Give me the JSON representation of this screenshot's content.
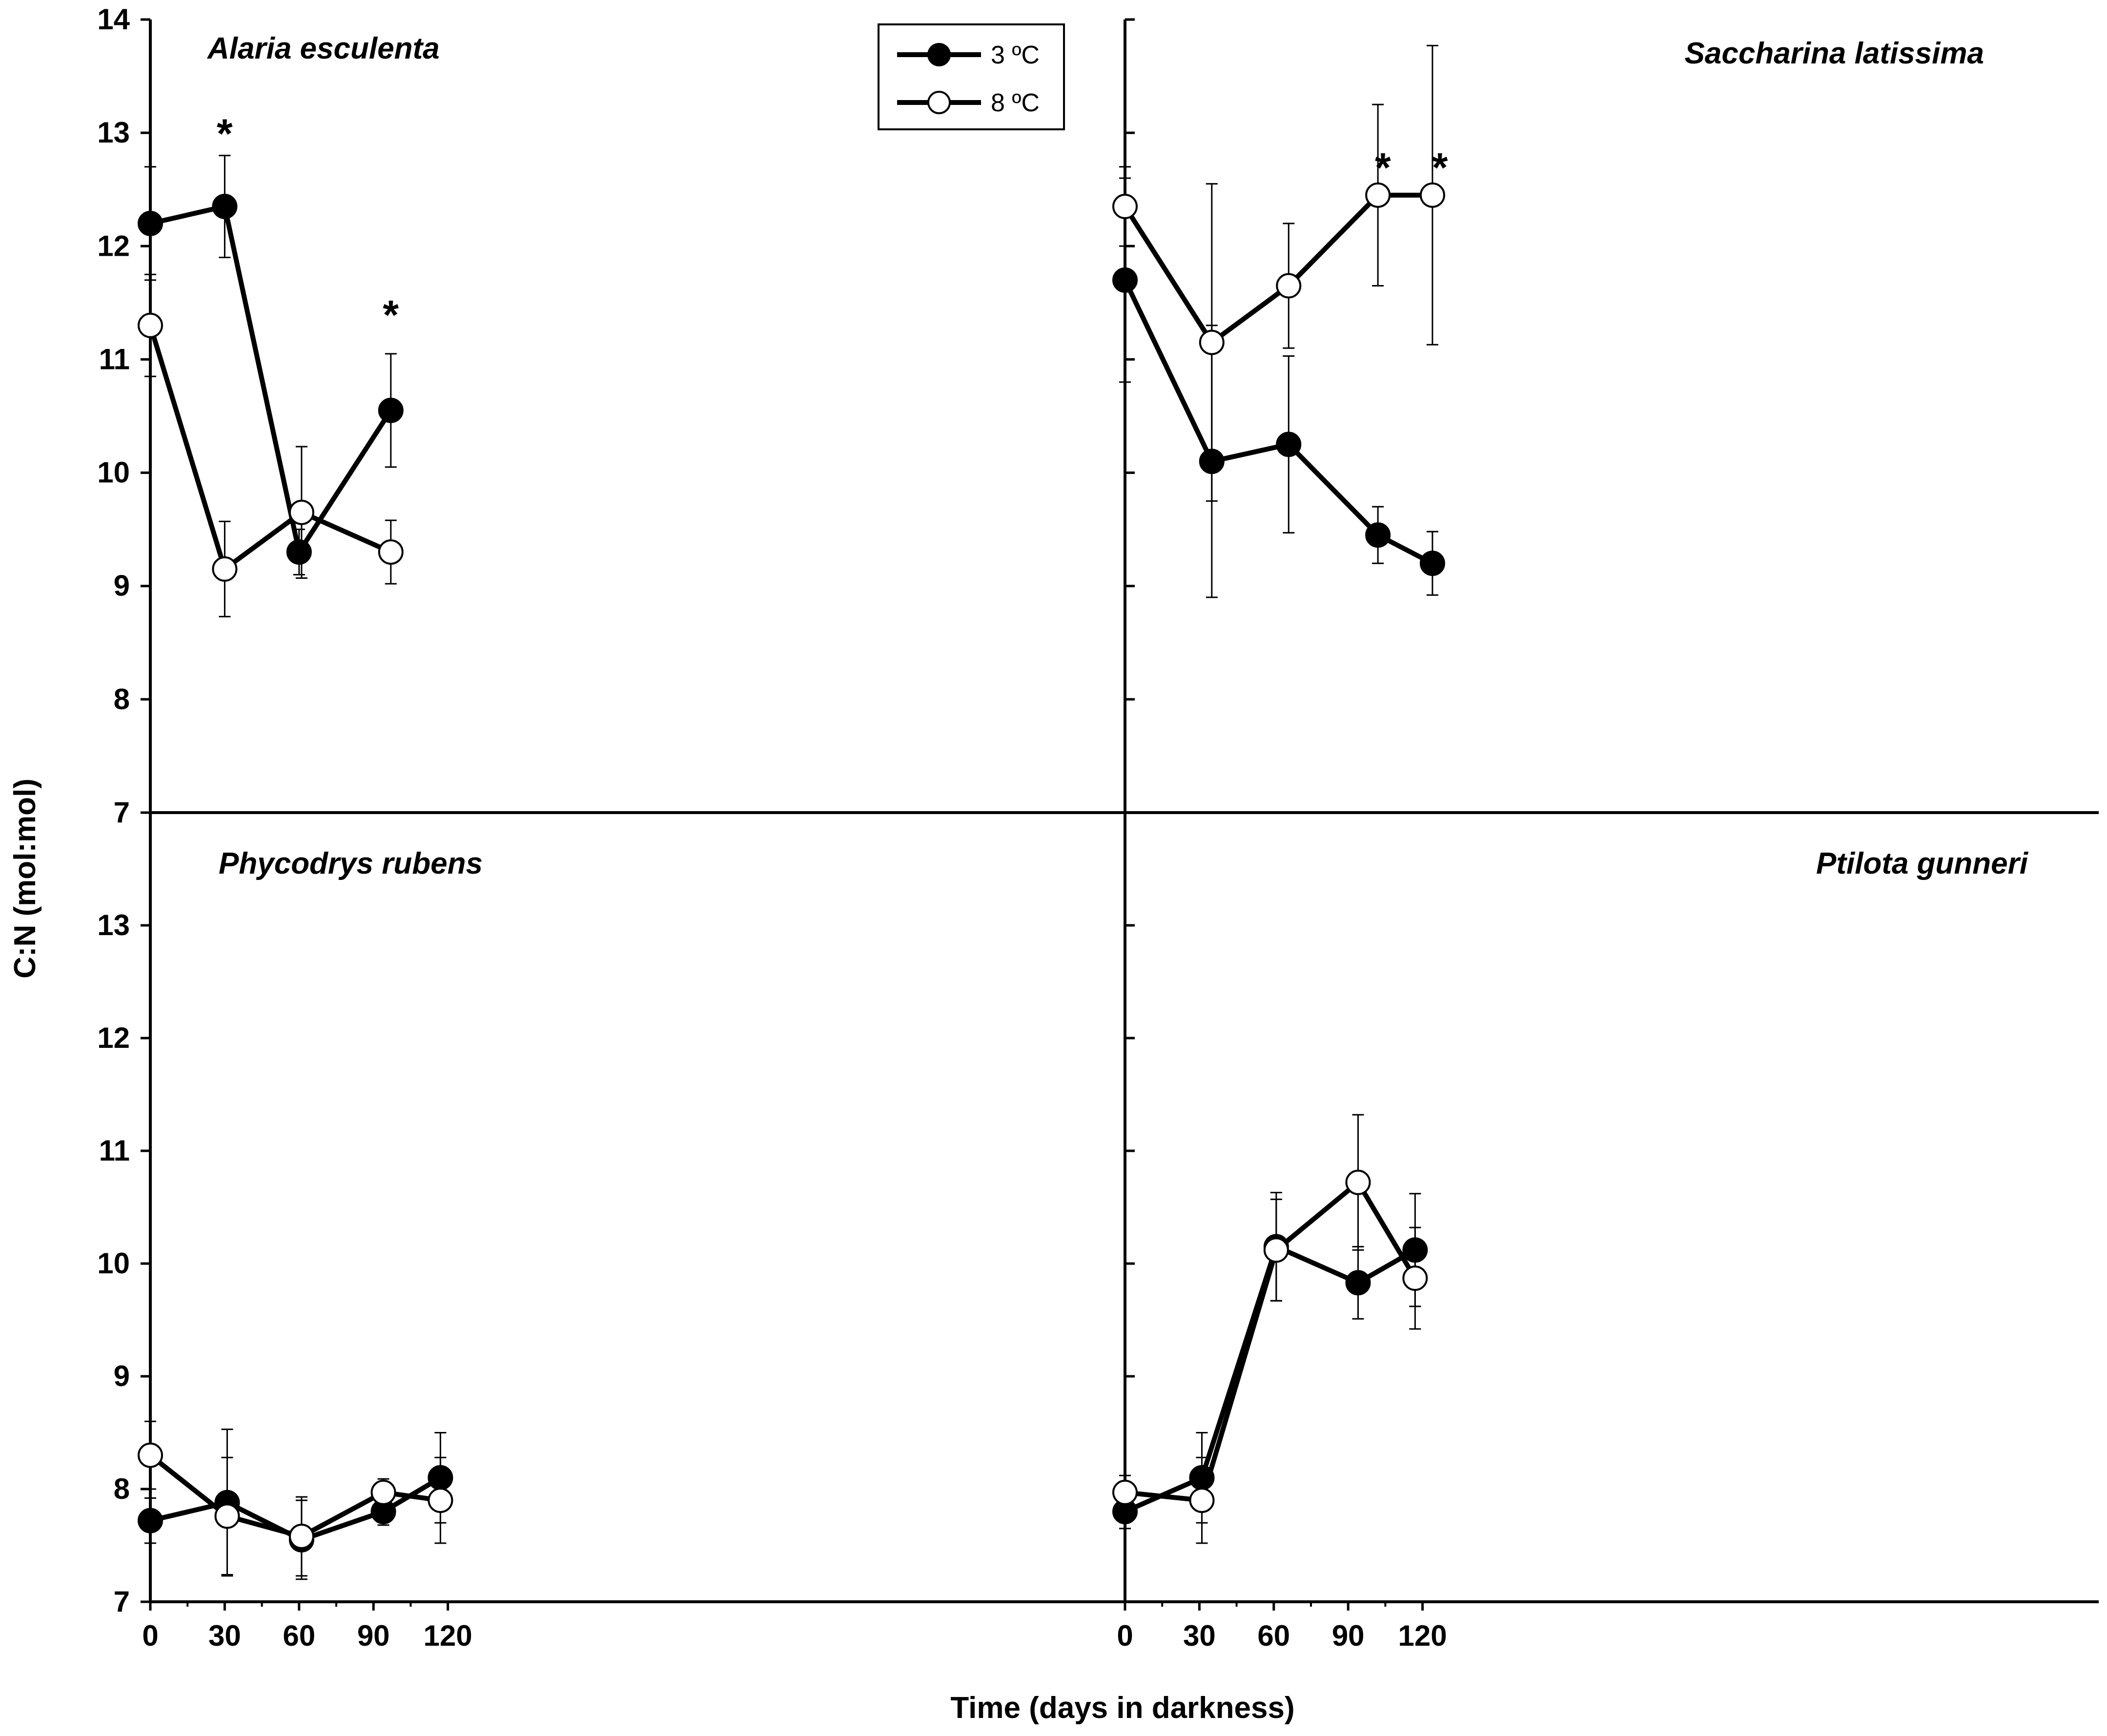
{
  "chart_data": [
    {
      "type": "line",
      "title": "Alaria esculenta",
      "xlim": [
        0,
        130
      ],
      "ylim": [
        7,
        14
      ],
      "series": [
        {
          "name": "3 ºC",
          "x": [
            0,
            30,
            60,
            97
          ],
          "y": [
            12.2,
            12.35,
            9.3,
            10.55
          ],
          "err": [
            0.5,
            0.45,
            0.2,
            0.5
          ]
        },
        {
          "name": "8 ºC",
          "x": [
            0,
            30,
            61,
            97
          ],
          "y": [
            11.3,
            9.15,
            9.65,
            9.3
          ],
          "err": [
            0.45,
            0.42,
            0.58,
            0.28
          ]
        }
      ],
      "significance": [
        {
          "x": 30,
          "y": 13.05,
          "label": "*"
        },
        {
          "x": 97,
          "y": 11.45,
          "label": "*"
        }
      ]
    },
    {
      "type": "line",
      "title": "Saccharina latissima",
      "xlim": [
        0,
        130
      ],
      "ylim": [
        7,
        14
      ],
      "series": [
        {
          "name": "3 ºC",
          "x": [
            0,
            35,
            66,
            102,
            124
          ],
          "y": [
            11.7,
            10.1,
            10.25,
            9.45,
            9.2
          ],
          "err": [
            0.9,
            1.2,
            0.78,
            0.25,
            0.28
          ]
        },
        {
          "name": "8 ºC",
          "x": [
            0,
            35,
            66,
            102,
            124
          ],
          "y": [
            12.35,
            11.15,
            11.65,
            12.45,
            12.45
          ],
          "err": [
            0.35,
            1.4,
            0.55,
            0.8,
            1.32
          ]
        }
      ],
      "significance": [
        {
          "x": 104,
          "y": 12.75,
          "label": "*"
        },
        {
          "x": 127,
          "y": 12.75,
          "label": "*"
        }
      ]
    },
    {
      "type": "line",
      "title": "Phycodrys rubens",
      "xlim": [
        0,
        130
      ],
      "ylim": [
        7,
        14
      ],
      "series": [
        {
          "name": "3 ºC",
          "x": [
            0,
            31,
            61,
            94,
            117
          ],
          "y": [
            7.72,
            7.88,
            7.55,
            7.8,
            8.1
          ],
          "err": [
            0.2,
            0.65,
            0.35,
            0.12,
            0.4
          ]
        },
        {
          "name": "8 ºC",
          "x": [
            0,
            31,
            61,
            94,
            117
          ],
          "y": [
            8.3,
            7.76,
            7.58,
            7.97,
            7.9
          ],
          "err": [
            0.3,
            0.52,
            0.35,
            0.12,
            0.38
          ]
        }
      ],
      "significance": []
    },
    {
      "type": "line",
      "title": "Ptilota gunneri",
      "xlim": [
        0,
        130
      ],
      "ylim": [
        7,
        14
      ],
      "series": [
        {
          "name": "3 ºC",
          "x": [
            0,
            31,
            61,
            94,
            117
          ],
          "y": [
            7.8,
            8.1,
            10.15,
            9.83,
            10.12
          ],
          "err": [
            0.15,
            0.4,
            0.48,
            0.32,
            0.5
          ]
        },
        {
          "name": "8 ºC",
          "x": [
            0,
            31,
            61,
            94,
            117
          ],
          "y": [
            7.97,
            7.9,
            10.12,
            10.72,
            9.87
          ],
          "err": [
            0.15,
            0.38,
            0.45,
            0.6,
            0.45
          ]
        }
      ],
      "significance": []
    }
  ],
  "axes": {
    "ylabel": "C:N (mol:mol)",
    "xlabel": "Time (days in darkness)",
    "yticks": [
      "7",
      "8",
      "9",
      "10",
      "11",
      "12",
      "13",
      "14"
    ],
    "xticks": [
      "0",
      "30",
      "60",
      "90",
      "120"
    ]
  },
  "legend": {
    "placement": "top-center",
    "items": [
      {
        "label": "3 ºC",
        "marker": "filled-circle"
      },
      {
        "label": "8 ºC",
        "marker": "open-circle"
      }
    ]
  },
  "colors": {
    "line": "#000000",
    "filled": "#000000",
    "open": "#ffffff"
  }
}
